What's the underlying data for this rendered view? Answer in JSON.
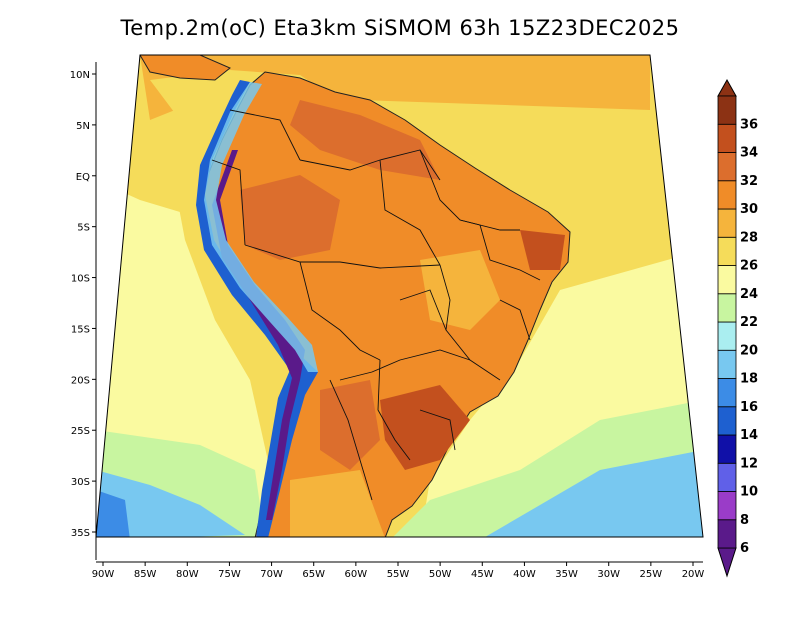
{
  "title": "Temp.2m(oC) Eta3km SiSMOM 63h 15Z23DEC2025",
  "lat_labels": [
    "10N",
    "5N",
    "EQ",
    "5S",
    "10S",
    "15S",
    "20S",
    "25S",
    "30S",
    "35S"
  ],
  "lat_values": [
    10,
    5,
    0,
    -5,
    -10,
    -15,
    -20,
    -25,
    -30,
    -35
  ],
  "lon_labels": [
    "90W",
    "85W",
    "80W",
    "75W",
    "70W",
    "65W",
    "60W",
    "55W",
    "50W",
    "45W",
    "40W",
    "35W",
    "30W",
    "25W",
    "20W"
  ],
  "lon_values": [
    -90,
    -85,
    -80,
    -75,
    -70,
    -65,
    -60,
    -55,
    -50,
    -45,
    -40,
    -35,
    -30,
    -25,
    -20
  ],
  "colorbar": {
    "levels": [
      "6",
      "8",
      "10",
      "12",
      "14",
      "16",
      "18",
      "20",
      "22",
      "24",
      "26",
      "28",
      "30",
      "32",
      "34",
      "36"
    ],
    "colors": [
      "#5a1a8a",
      "#9a3cc8",
      "#6060e8",
      "#1010a8",
      "#1e60d0",
      "#3c8ce6",
      "#78c8f0",
      "#aaeef0",
      "#c8f5a0",
      "#fafaa0",
      "#f5dc5a",
      "#f5b43c",
      "#f08c28",
      "#dc6e2d",
      "#c3501e",
      "#8c3214"
    ]
  },
  "colors": {
    "ocean_warm": "#f5dc5a",
    "ocean_mild": "#fafaa0",
    "ocean_cool": "#c8f5a0",
    "ocean_cold": "#78c8f0",
    "land_hot": "#f08c28",
    "land_veryhot": "#dc6e2d",
    "andes_cold": "#1e60d0",
    "andes_coldest": "#5a1a8a"
  }
}
